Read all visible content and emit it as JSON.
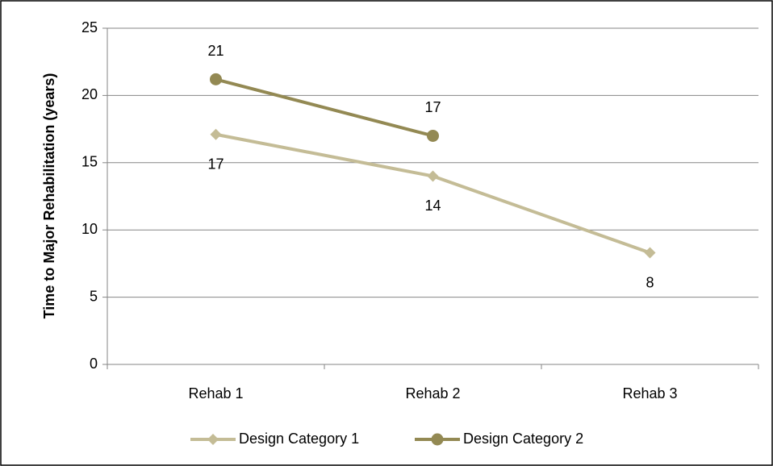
{
  "chart_data": {
    "type": "line",
    "y_label": "Time to Major Rehabilitation (years)",
    "categories": [
      "Rehab 1",
      "Rehab 2",
      "Rehab 3"
    ],
    "series": [
      {
        "name": "Design Category 1",
        "color": "#c4bc96",
        "marker": "diamond",
        "label_position": "below",
        "values": [
          17.1,
          14,
          8.3
        ],
        "value_labels": [
          "17",
          "14",
          "8"
        ]
      },
      {
        "name": "Design Category 2",
        "color": "#938953",
        "marker": "circle",
        "label_position": "above",
        "values": [
          21.2,
          17,
          null
        ],
        "value_labels": [
          "21",
          "17",
          null
        ]
      }
    ],
    "ylim": [
      0,
      25
    ],
    "yticks": [
      0,
      5,
      10,
      15,
      20,
      25
    ],
    "grid": true,
    "legend": "bottom"
  }
}
